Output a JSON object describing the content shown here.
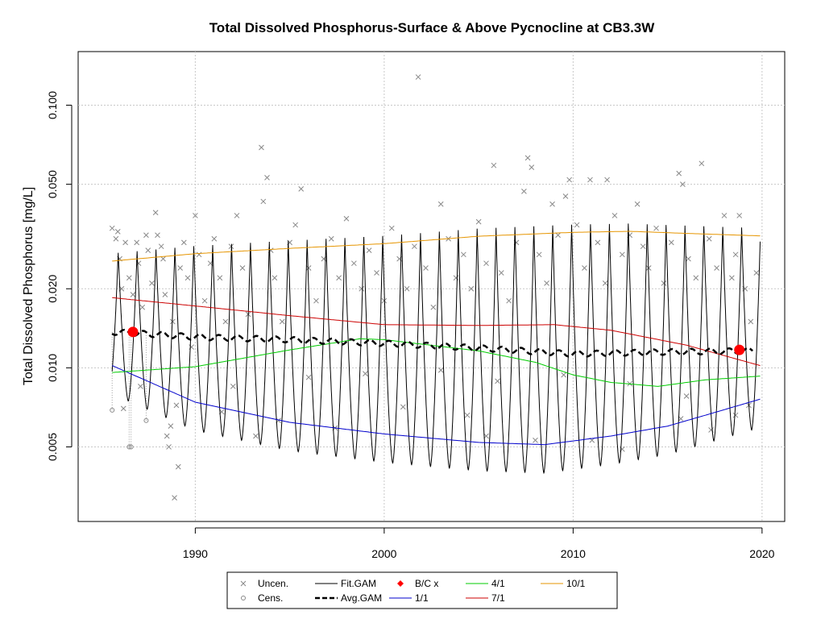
{
  "chart_data": {
    "type": "line",
    "title": "Total Dissolved Phosphorus-Surface & Above Pycnocline at CB3.3W",
    "xlabel": "",
    "ylabel": "Total Dissolved Phosphorus [mg/L]",
    "y_scale": "log",
    "xlim": [
      1983.8,
      2021.2
    ],
    "ylim": [
      0.0026,
      0.16
    ],
    "grid": true,
    "legend_position": "bottom",
    "x_ticks": [
      {
        "value": 1990,
        "label": "1990"
      },
      {
        "value": 2000,
        "label": "2000"
      },
      {
        "value": 2010,
        "label": "2010"
      },
      {
        "value": 2020,
        "label": "2020"
      }
    ],
    "y_ticks": [
      {
        "value": 0.005,
        "label": "0.005"
      },
      {
        "value": 0.01,
        "label": "0.010"
      },
      {
        "value": 0.02,
        "label": "0.020"
      },
      {
        "value": 0.05,
        "label": "0.050"
      },
      {
        "value": 0.1,
        "label": "0.100"
      }
    ],
    "legend": [
      {
        "key": "uncen",
        "label": "Uncen.",
        "symbol": "x",
        "color": "#888888"
      },
      {
        "key": "cens",
        "label": "Cens.",
        "symbol": "o",
        "color": "#888888"
      },
      {
        "key": "fit",
        "label": "Fit.GAM",
        "symbol": "line",
        "color": "#000000"
      },
      {
        "key": "avg",
        "label": "Avg.GAM",
        "symbol": "dash",
        "color": "#000000"
      },
      {
        "key": "bc",
        "label": "B/C x",
        "symbol": "diamond",
        "color": "#ff0000"
      },
      {
        "key": "d11",
        "label": "1/1",
        "symbol": "line",
        "color": "#0000cc"
      },
      {
        "key": "d41",
        "label": "4/1",
        "symbol": "line",
        "color": "#00cc00"
      },
      {
        "key": "d71",
        "label": "7/1",
        "symbol": "line",
        "color": "#cc0000"
      },
      {
        "key": "d101",
        "label": "10/1",
        "symbol": "line",
        "color": "#e69500"
      }
    ],
    "series": [
      {
        "name": "Uncen.",
        "style": "points-x",
        "color": "#888888",
        "points": [
          [
            1985.6,
            0.034
          ],
          [
            1985.8,
            0.031
          ],
          [
            1985.9,
            0.033
          ],
          [
            1986.0,
            0.026
          ],
          [
            1986.1,
            0.02
          ],
          [
            1986.3,
            0.03
          ],
          [
            1986.5,
            0.022
          ],
          [
            1986.7,
            0.019
          ],
          [
            1986.9,
            0.03
          ],
          [
            1987.0,
            0.025
          ],
          [
            1987.2,
            0.017
          ],
          [
            1987.4,
            0.032
          ],
          [
            1987.5,
            0.028
          ],
          [
            1987.7,
            0.021
          ],
          [
            1987.9,
            0.039
          ],
          [
            1988.0,
            0.032
          ],
          [
            1988.2,
            0.029
          ],
          [
            1988.3,
            0.026
          ],
          [
            1988.4,
            0.019
          ],
          [
            1988.5,
            0.0055
          ],
          [
            1988.6,
            0.005
          ],
          [
            1988.7,
            0.006
          ],
          [
            1988.8,
            0.015
          ],
          [
            1988.9,
            0.0032
          ],
          [
            1989.1,
            0.0042
          ],
          [
            1989.2,
            0.024
          ],
          [
            1989.4,
            0.03
          ],
          [
            1989.6,
            0.022
          ],
          [
            1989.8,
            0.012
          ],
          [
            1990.0,
            0.038
          ],
          [
            1990.2,
            0.027
          ],
          [
            1990.5,
            0.018
          ],
          [
            1990.8,
            0.025
          ],
          [
            1991.0,
            0.031
          ],
          [
            1991.3,
            0.022
          ],
          [
            1991.6,
            0.015
          ],
          [
            1991.9,
            0.029
          ],
          [
            1992.2,
            0.038
          ],
          [
            1992.5,
            0.024
          ],
          [
            1992.8,
            0.016
          ],
          [
            1993.2,
            0.0055
          ],
          [
            1993.5,
            0.069
          ],
          [
            1993.6,
            0.043
          ],
          [
            1993.8,
            0.053
          ],
          [
            1994.0,
            0.028
          ],
          [
            1994.2,
            0.022
          ],
          [
            1994.6,
            0.015
          ],
          [
            1995.0,
            0.03
          ],
          [
            1995.3,
            0.035
          ],
          [
            1995.6,
            0.048
          ],
          [
            1996.0,
            0.024
          ],
          [
            1996.4,
            0.018
          ],
          [
            1996.8,
            0.026
          ],
          [
            1997.2,
            0.031
          ],
          [
            1997.6,
            0.022
          ],
          [
            1998.0,
            0.037
          ],
          [
            1998.4,
            0.025
          ],
          [
            1998.8,
            0.02
          ],
          [
            1999.2,
            0.028
          ],
          [
            1999.6,
            0.023
          ],
          [
            2000.0,
            0.018
          ],
          [
            2000.4,
            0.034
          ],
          [
            2000.8,
            0.026
          ],
          [
            2001.2,
            0.02
          ],
          [
            2001.6,
            0.029
          ],
          [
            2001.8,
            0.128
          ],
          [
            2002.2,
            0.024
          ],
          [
            2002.6,
            0.017
          ],
          [
            2003.0,
            0.042
          ],
          [
            2003.4,
            0.031
          ],
          [
            2003.8,
            0.022
          ],
          [
            2004.2,
            0.027
          ],
          [
            2004.6,
            0.02
          ],
          [
            2005.0,
            0.036
          ],
          [
            2005.4,
            0.025
          ],
          [
            2005.8,
            0.059
          ],
          [
            2006.2,
            0.023
          ],
          [
            2006.6,
            0.018
          ],
          [
            2007.0,
            0.03
          ],
          [
            2007.4,
            0.047
          ],
          [
            2007.6,
            0.063
          ],
          [
            2007.8,
            0.058
          ],
          [
            2008.2,
            0.027
          ],
          [
            2008.6,
            0.021
          ],
          [
            2008.9,
            0.042
          ],
          [
            2009.2,
            0.032
          ],
          [
            2009.6,
            0.045
          ],
          [
            2009.8,
            0.052
          ],
          [
            2010.2,
            0.035
          ],
          [
            2010.6,
            0.024
          ],
          [
            2010.9,
            0.052
          ],
          [
            2011.3,
            0.03
          ],
          [
            2011.7,
            0.021
          ],
          [
            2011.8,
            0.052
          ],
          [
            2012.2,
            0.038
          ],
          [
            2012.6,
            0.027
          ],
          [
            2013.0,
            0.032
          ],
          [
            2013.4,
            0.042
          ],
          [
            2013.7,
            0.029
          ],
          [
            2014.0,
            0.024
          ],
          [
            2014.4,
            0.034
          ],
          [
            2014.8,
            0.021
          ],
          [
            2015.2,
            0.03
          ],
          [
            2015.6,
            0.055
          ],
          [
            2015.8,
            0.05
          ],
          [
            2016.1,
            0.026
          ],
          [
            2016.5,
            0.022
          ],
          [
            2016.8,
            0.06
          ],
          [
            2017.2,
            0.031
          ],
          [
            2017.6,
            0.024
          ],
          [
            2018.0,
            0.038
          ],
          [
            2018.4,
            0.022
          ],
          [
            2018.6,
            0.027
          ],
          [
            2018.8,
            0.038
          ],
          [
            2019.1,
            0.02
          ],
          [
            2019.4,
            0.015
          ],
          [
            2019.7,
            0.023
          ],
          [
            1986.2,
            0.007
          ],
          [
            1987.1,
            0.0085
          ],
          [
            1989.0,
            0.0072
          ],
          [
            1991.4,
            0.0068
          ],
          [
            1994.4,
            0.0063
          ],
          [
            1997.4,
            0.0059
          ],
          [
            2001.0,
            0.0071
          ],
          [
            2004.4,
            0.0066
          ],
          [
            2005.4,
            0.0055
          ],
          [
            2008.0,
            0.0053
          ],
          [
            2011.0,
            0.0053
          ],
          [
            2012.6,
            0.0049
          ],
          [
            2015.7,
            0.0064
          ],
          [
            2017.3,
            0.0058
          ],
          [
            2018.6,
            0.0066
          ],
          [
            2019.3,
            0.0072
          ],
          [
            1992.0,
            0.0085
          ],
          [
            1996.0,
            0.0092
          ],
          [
            1999.0,
            0.0095
          ],
          [
            2003.0,
            0.0098
          ],
          [
            2006.0,
            0.0089
          ],
          [
            2009.5,
            0.0094
          ],
          [
            2013.0,
            0.0087
          ],
          [
            2016.0,
            0.0078
          ]
        ]
      },
      {
        "name": "Cens.",
        "style": "points-o",
        "color": "#888888",
        "points": [
          [
            1985.6,
            0.0069
          ],
          [
            1986.5,
            0.005
          ],
          [
            1986.6,
            0.005
          ],
          [
            1987.4,
            0.0063
          ]
        ]
      },
      {
        "name": "Fit.GAM",
        "style": "seasonal-line",
        "color": "#000000",
        "x_start": 1985.6,
        "x_end": 2019.9,
        "peak_phase": 0.92,
        "trough_phase": 0.45
      },
      {
        "name": "Avg.GAM",
        "style": "dashed",
        "color": "#000000",
        "x": [
          1985.6,
          1988,
          1990,
          1995,
          2000,
          2005,
          2010,
          2015,
          2019.5
        ],
        "y": [
          0.0137,
          0.0134,
          0.0131,
          0.0128,
          0.0124,
          0.0119,
          0.0113,
          0.0115,
          0.0116
        ]
      },
      {
        "name": "1/1",
        "style": "line",
        "color": "#0000cc",
        "x": [
          1985.6,
          1990,
          1995,
          2000,
          2005,
          2008.5,
          2012,
          2015,
          2017,
          2019.9
        ],
        "y": [
          0.0102,
          0.0074,
          0.0062,
          0.0056,
          0.0052,
          0.0051,
          0.0055,
          0.006,
          0.0066,
          0.0076
        ]
      },
      {
        "name": "4/1",
        "style": "line",
        "color": "#00cc00",
        "x": [
          1985.6,
          1990,
          1995,
          1998.7,
          2000,
          2005,
          2008,
          2010,
          2012,
          2014.5,
          2017,
          2019.9
        ],
        "y": [
          0.0096,
          0.0101,
          0.0117,
          0.0129,
          0.0128,
          0.0116,
          0.0105,
          0.0094,
          0.0088,
          0.0085,
          0.009,
          0.0093
        ]
      },
      {
        "name": "7/1",
        "style": "line",
        "color": "#cc0000",
        "x": [
          1985.6,
          1990,
          1995,
          2000,
          2005,
          2009,
          2012,
          2016,
          2019.9
        ],
        "y": [
          0.0185,
          0.0172,
          0.0158,
          0.0146,
          0.0145,
          0.0146,
          0.0139,
          0.0122,
          0.0102
        ]
      },
      {
        "name": "10/1",
        "style": "line",
        "color": "#e69500",
        "x": [
          1985.6,
          1990,
          1995,
          2000,
          2005,
          2010,
          2013,
          2016,
          2019.9
        ],
        "y": [
          0.0255,
          0.0272,
          0.0285,
          0.0297,
          0.0317,
          0.0328,
          0.0331,
          0.0325,
          0.0318
        ]
      },
      {
        "name": "B/C x",
        "style": "big-points",
        "color": "#ff0000",
        "points": [
          [
            1986.7,
            0.0137
          ],
          [
            2018.8,
            0.0117
          ]
        ]
      }
    ]
  }
}
